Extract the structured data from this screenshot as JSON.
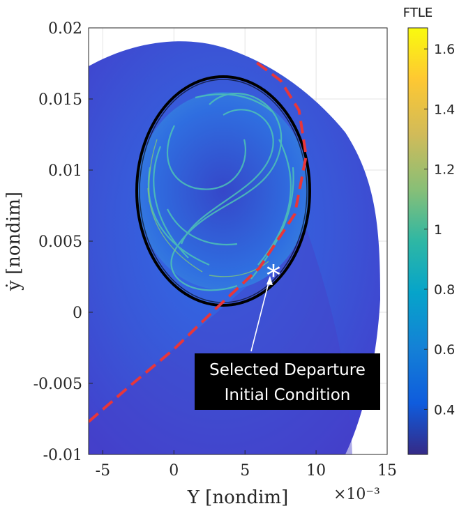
{
  "chart_data": {
    "type": "heatmap",
    "title": "",
    "xlabel": "Y [nondim]",
    "ylabel": "ẏ [nondim]",
    "x_multiplier_label": "×10⁻³",
    "xlim": [
      -0.006,
      0.015
    ],
    "ylim": [
      -0.01,
      0.02
    ],
    "x_ticks": [
      -0.005,
      0,
      0.005,
      0.01,
      0.015
    ],
    "x_tick_labels": [
      "-5",
      "0",
      "5",
      "10",
      "15"
    ],
    "y_ticks": [
      0.02,
      0.015,
      0.01,
      0.005,
      0,
      -0.005,
      -0.01
    ],
    "y_tick_labels": [
      "0.02",
      "0.015",
      "0.01",
      "0.005",
      "0",
      "-0.005",
      "-0.01"
    ],
    "grid": true,
    "colorbar": {
      "title": "FTLE",
      "range": [
        0.25,
        1.67
      ],
      "ticks": [
        0.4,
        0.6,
        0.8,
        1.0,
        1.2,
        1.4,
        1.6
      ],
      "tick_labels": [
        "0.4",
        "0.6",
        "0.8",
        "1",
        "1.2",
        "1.4",
        "1.6"
      ],
      "colormap": "parula"
    },
    "annotation": {
      "text_line1": "Selected Departure",
      "text_line2": "Initial Condition",
      "marker": "*",
      "point": [
        0.007,
        0.003
      ]
    },
    "ellipse_boundary": {
      "center": [
        0.0034,
        0.0096
      ],
      "semi_axis_x": 0.0061,
      "semi_axis_y": 0.0069,
      "color": "#000000"
    },
    "red_dashed_curve": [
      [
        -0.006,
        -0.0077
      ],
      [
        -0.003,
        -0.0051
      ],
      [
        0.0,
        -0.0026
      ],
      [
        0.003,
        0.0003
      ],
      [
        0.006,
        0.0031
      ],
      [
        0.0085,
        0.0069
      ],
      [
        0.0093,
        0.011
      ],
      [
        0.0088,
        0.0142
      ],
      [
        0.0075,
        0.0163
      ],
      [
        0.0055,
        0.0178
      ]
    ],
    "colors": {
      "background_field": "#3a5ad8",
      "outer_field": "#4540cf",
      "ellipse": "#000000",
      "dashed": "#e8363a",
      "accent_swirl": "#4ec3b6"
    }
  }
}
